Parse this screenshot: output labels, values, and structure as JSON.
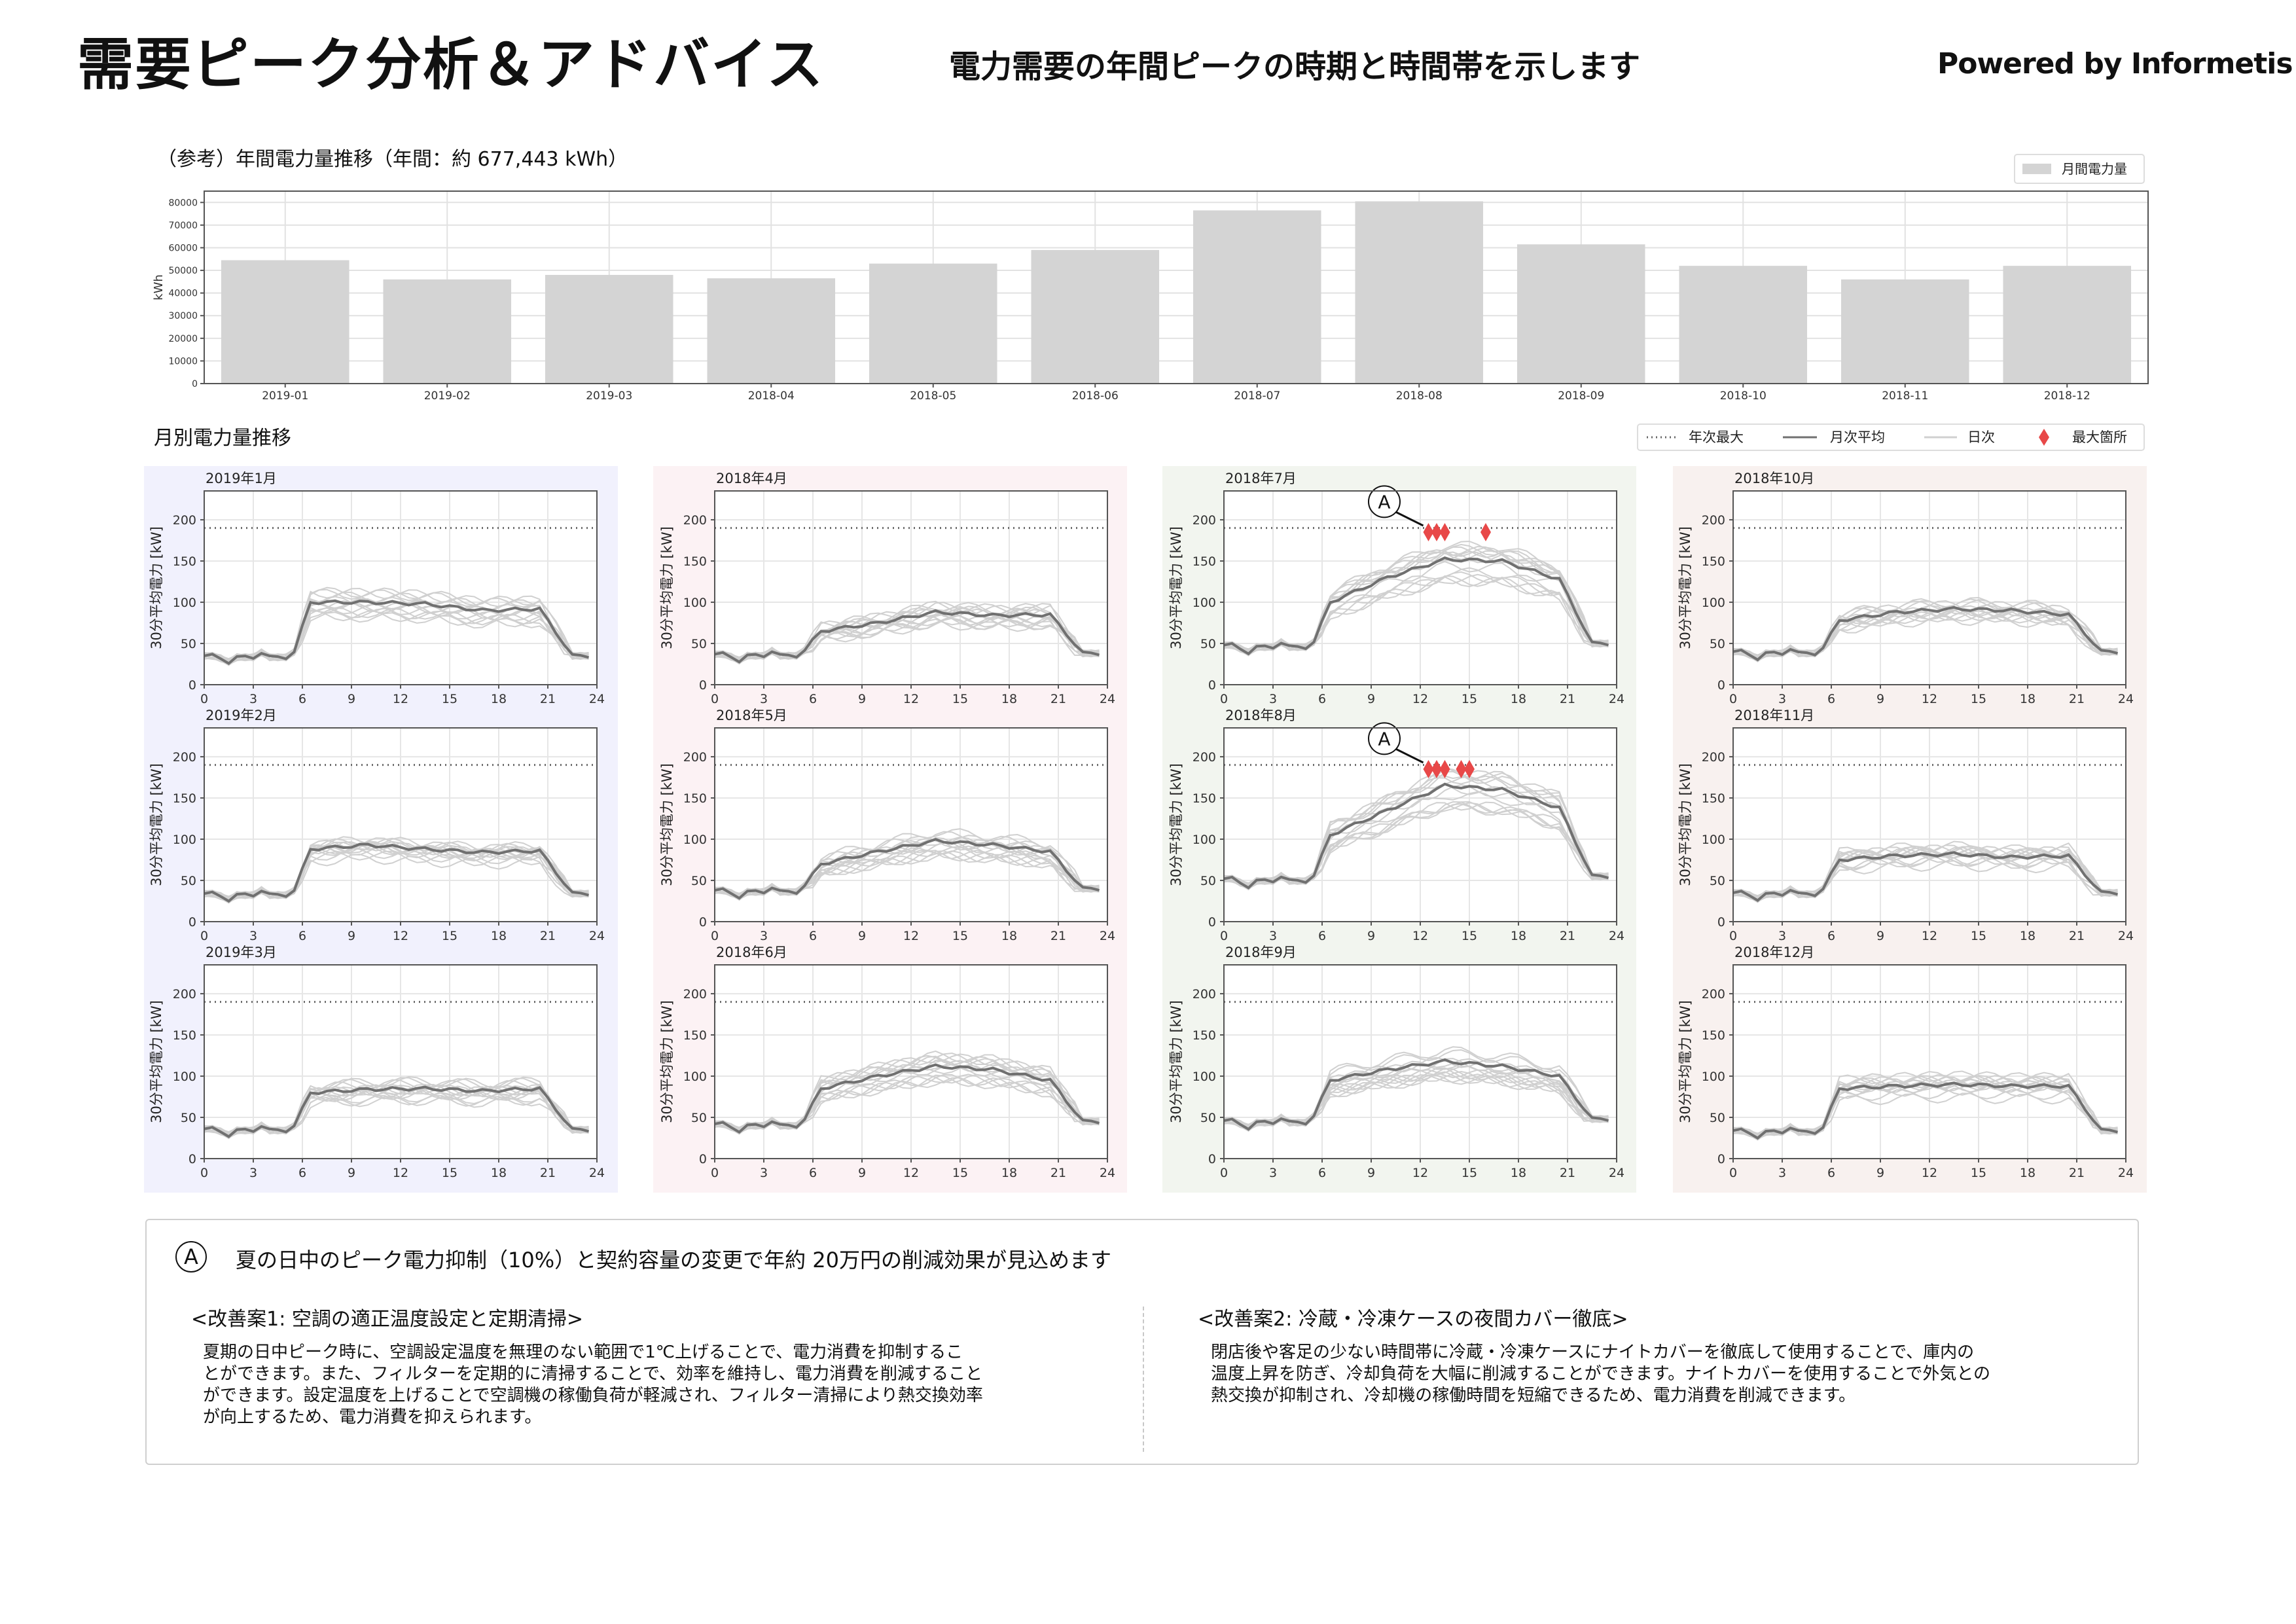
{
  "header": {
    "title": "需要ピーク分析＆アドバイス",
    "subtitle": "電力需要の年間ピークの時期と時間帯を示します",
    "powered_by": "Powered by Informetis"
  },
  "annual": {
    "title": "（参考）年間電力量推移（年間：約 677,443 kWh）"
  },
  "monthly": {
    "title": "月別電力量推移",
    "legend": [
      "年次最大",
      "月次平均",
      "日次",
      "最大箇所"
    ],
    "ylabel": "30分平均電力 [kW]",
    "annual_max_kw": 190,
    "marker_label": "A"
  },
  "chart_data": [
    {
      "type": "bar",
      "categories": [
        "2019-01",
        "2019-02",
        "2019-03",
        "2018-04",
        "2018-05",
        "2018-06",
        "2018-07",
        "2018-08",
        "2018-09",
        "2018-10",
        "2018-11",
        "2018-12"
      ],
      "values": [
        54500,
        46000,
        48000,
        46500,
        53000,
        59000,
        76500,
        80500,
        61500,
        52000,
        46000,
        52000
      ],
      "ylabel": "kWh",
      "ylim": [
        0,
        85000
      ],
      "yticks": [
        0,
        10000,
        20000,
        30000,
        40000,
        50000,
        60000,
        70000,
        80000
      ],
      "legend": [
        "月間電力量"
      ],
      "legend_position": "top-right",
      "color": "#d4d4d4",
      "grid": true
    },
    {
      "type": "line",
      "layout": "4x3 small multiples",
      "x": [
        0,
        0.5,
        1,
        1.5,
        2,
        2.5,
        3,
        3.5,
        4,
        4.5,
        5,
        5.5,
        6,
        6.5,
        7,
        7.5,
        8,
        8.5,
        9,
        9.5,
        10,
        10.5,
        11,
        11.5,
        12,
        12.5,
        13,
        13.5,
        14,
        14.5,
        15,
        15.5,
        16,
        16.5,
        17,
        17.5,
        18,
        18.5,
        19,
        19.5,
        20,
        20.5,
        21,
        21.5,
        22,
        22.5,
        23,
        23.5
      ],
      "xticks": [
        0,
        3,
        6,
        9,
        12,
        15,
        18,
        21,
        24
      ],
      "yticks": [
        0,
        50,
        100,
        150,
        200
      ],
      "ylim": [
        0,
        235
      ],
      "xlim": [
        0,
        24
      ],
      "annual_max_kw": 190,
      "panels": [
        {
          "title": "2019年1月",
          "column": 0,
          "params": [
            35,
            40,
            100,
            100,
            98,
            90,
            92,
            35
          ],
          "peaks": []
        },
        {
          "title": "2019年2月",
          "column": 0,
          "params": [
            34,
            38,
            88,
            93,
            88,
            84,
            86,
            34
          ],
          "peaks": []
        },
        {
          "title": "2019年3月",
          "column": 0,
          "params": [
            36,
            40,
            80,
            84,
            85,
            82,
            85,
            35
          ],
          "peaks": []
        },
        {
          "title": "2018年4月",
          "column": 1,
          "params": [
            37,
            42,
            65,
            75,
            88,
            84,
            85,
            38
          ],
          "peaks": []
        },
        {
          "title": "2018年5月",
          "column": 1,
          "params": [
            38,
            44,
            70,
            85,
            98,
            93,
            85,
            40
          ],
          "peaks": []
        },
        {
          "title": "2018年6月",
          "column": 1,
          "params": [
            42,
            48,
            85,
            100,
            112,
            108,
            95,
            45
          ],
          "peaks": []
        },
        {
          "title": "2018年7月",
          "column": 2,
          "params": [
            48,
            52,
            100,
            130,
            152,
            150,
            128,
            50
          ],
          "peaks": [
            [
              12.5,
              185
            ],
            [
              13,
              185
            ],
            [
              13.5,
              185
            ],
            [
              16,
              185
            ]
          ]
        },
        {
          "title": "2018年8月",
          "column": 2,
          "params": [
            52,
            56,
            105,
            135,
            165,
            160,
            138,
            55
          ],
          "peaks": [
            [
              12.5,
              185
            ],
            [
              13,
              185
            ],
            [
              13.5,
              185
            ],
            [
              14.5,
              185
            ],
            [
              15,
              185
            ]
          ]
        },
        {
          "title": "2018年9月",
          "column": 2,
          "params": [
            46,
            52,
            95,
            108,
            118,
            112,
            100,
            48
          ],
          "peaks": []
        },
        {
          "title": "2018年10月",
          "column": 3,
          "params": [
            40,
            45,
            78,
            88,
            92,
            90,
            85,
            40
          ],
          "peaks": []
        },
        {
          "title": "2018年11月",
          "column": 3,
          "params": [
            35,
            40,
            75,
            80,
            82,
            78,
            80,
            35
          ],
          "peaks": []
        },
        {
          "title": "2018年12月",
          "column": 3,
          "params": [
            34,
            38,
            85,
            88,
            90,
            88,
            88,
            34
          ],
          "peaks": []
        }
      ],
      "series_style": {
        "annual_max": {
          "color": "#666666",
          "dash": "dotted"
        },
        "monthly_mean": {
          "color": "#707070"
        },
        "daily": {
          "color": "#d0d0d0"
        },
        "peak": {
          "color": "#e84848",
          "shape": "diamond"
        }
      }
    }
  ],
  "colors": {
    "column_bg": [
      "#f1f1fd",
      "#fcf2f4",
      "#f2f5ef",
      "#f8f1ef"
    ],
    "bar": "#d4d4d4",
    "peak_marker": "#e84848",
    "mean_line": "#707070",
    "daily_line": "#d0d0d0"
  },
  "advice": {
    "marker": "A",
    "headline": "夏の日中のピーク電力抑制（10%）と契約容量の変更で年約 20万円の削減効果が見込めます",
    "plan1": {
      "title": "<改善案1: 空調の適正温度設定と定期清掃>",
      "lines": [
        "夏期の日中ピーク時に、空調設定温度を無理のない範囲で1℃上げることで、電力消費を抑制するこ",
        "とができます。また、フィルターを定期的に清掃することで、効率を維持し、電力消費を削減すること",
        "ができます。設定温度を上げることで空調機の稼働負荷が軽減され、フィルター清掃により熱交換効率",
        "が向上するため、電力消費を抑えられます。"
      ]
    },
    "plan2": {
      "title": "<改善案2: 冷蔵・冷凍ケースの夜間カバー徹底>",
      "lines": [
        "閉店後や客足の少ない時間帯に冷蔵・冷凍ケースにナイトカバーを徹底して使用することで、庫内の",
        "温度上昇を防ぎ、冷却負荷を大幅に削減することができます。ナイトカバーを使用することで外気との",
        "熱交換が抑制され、冷却機の稼働時間を短縮できるため、電力消費を削減できます。"
      ]
    }
  }
}
